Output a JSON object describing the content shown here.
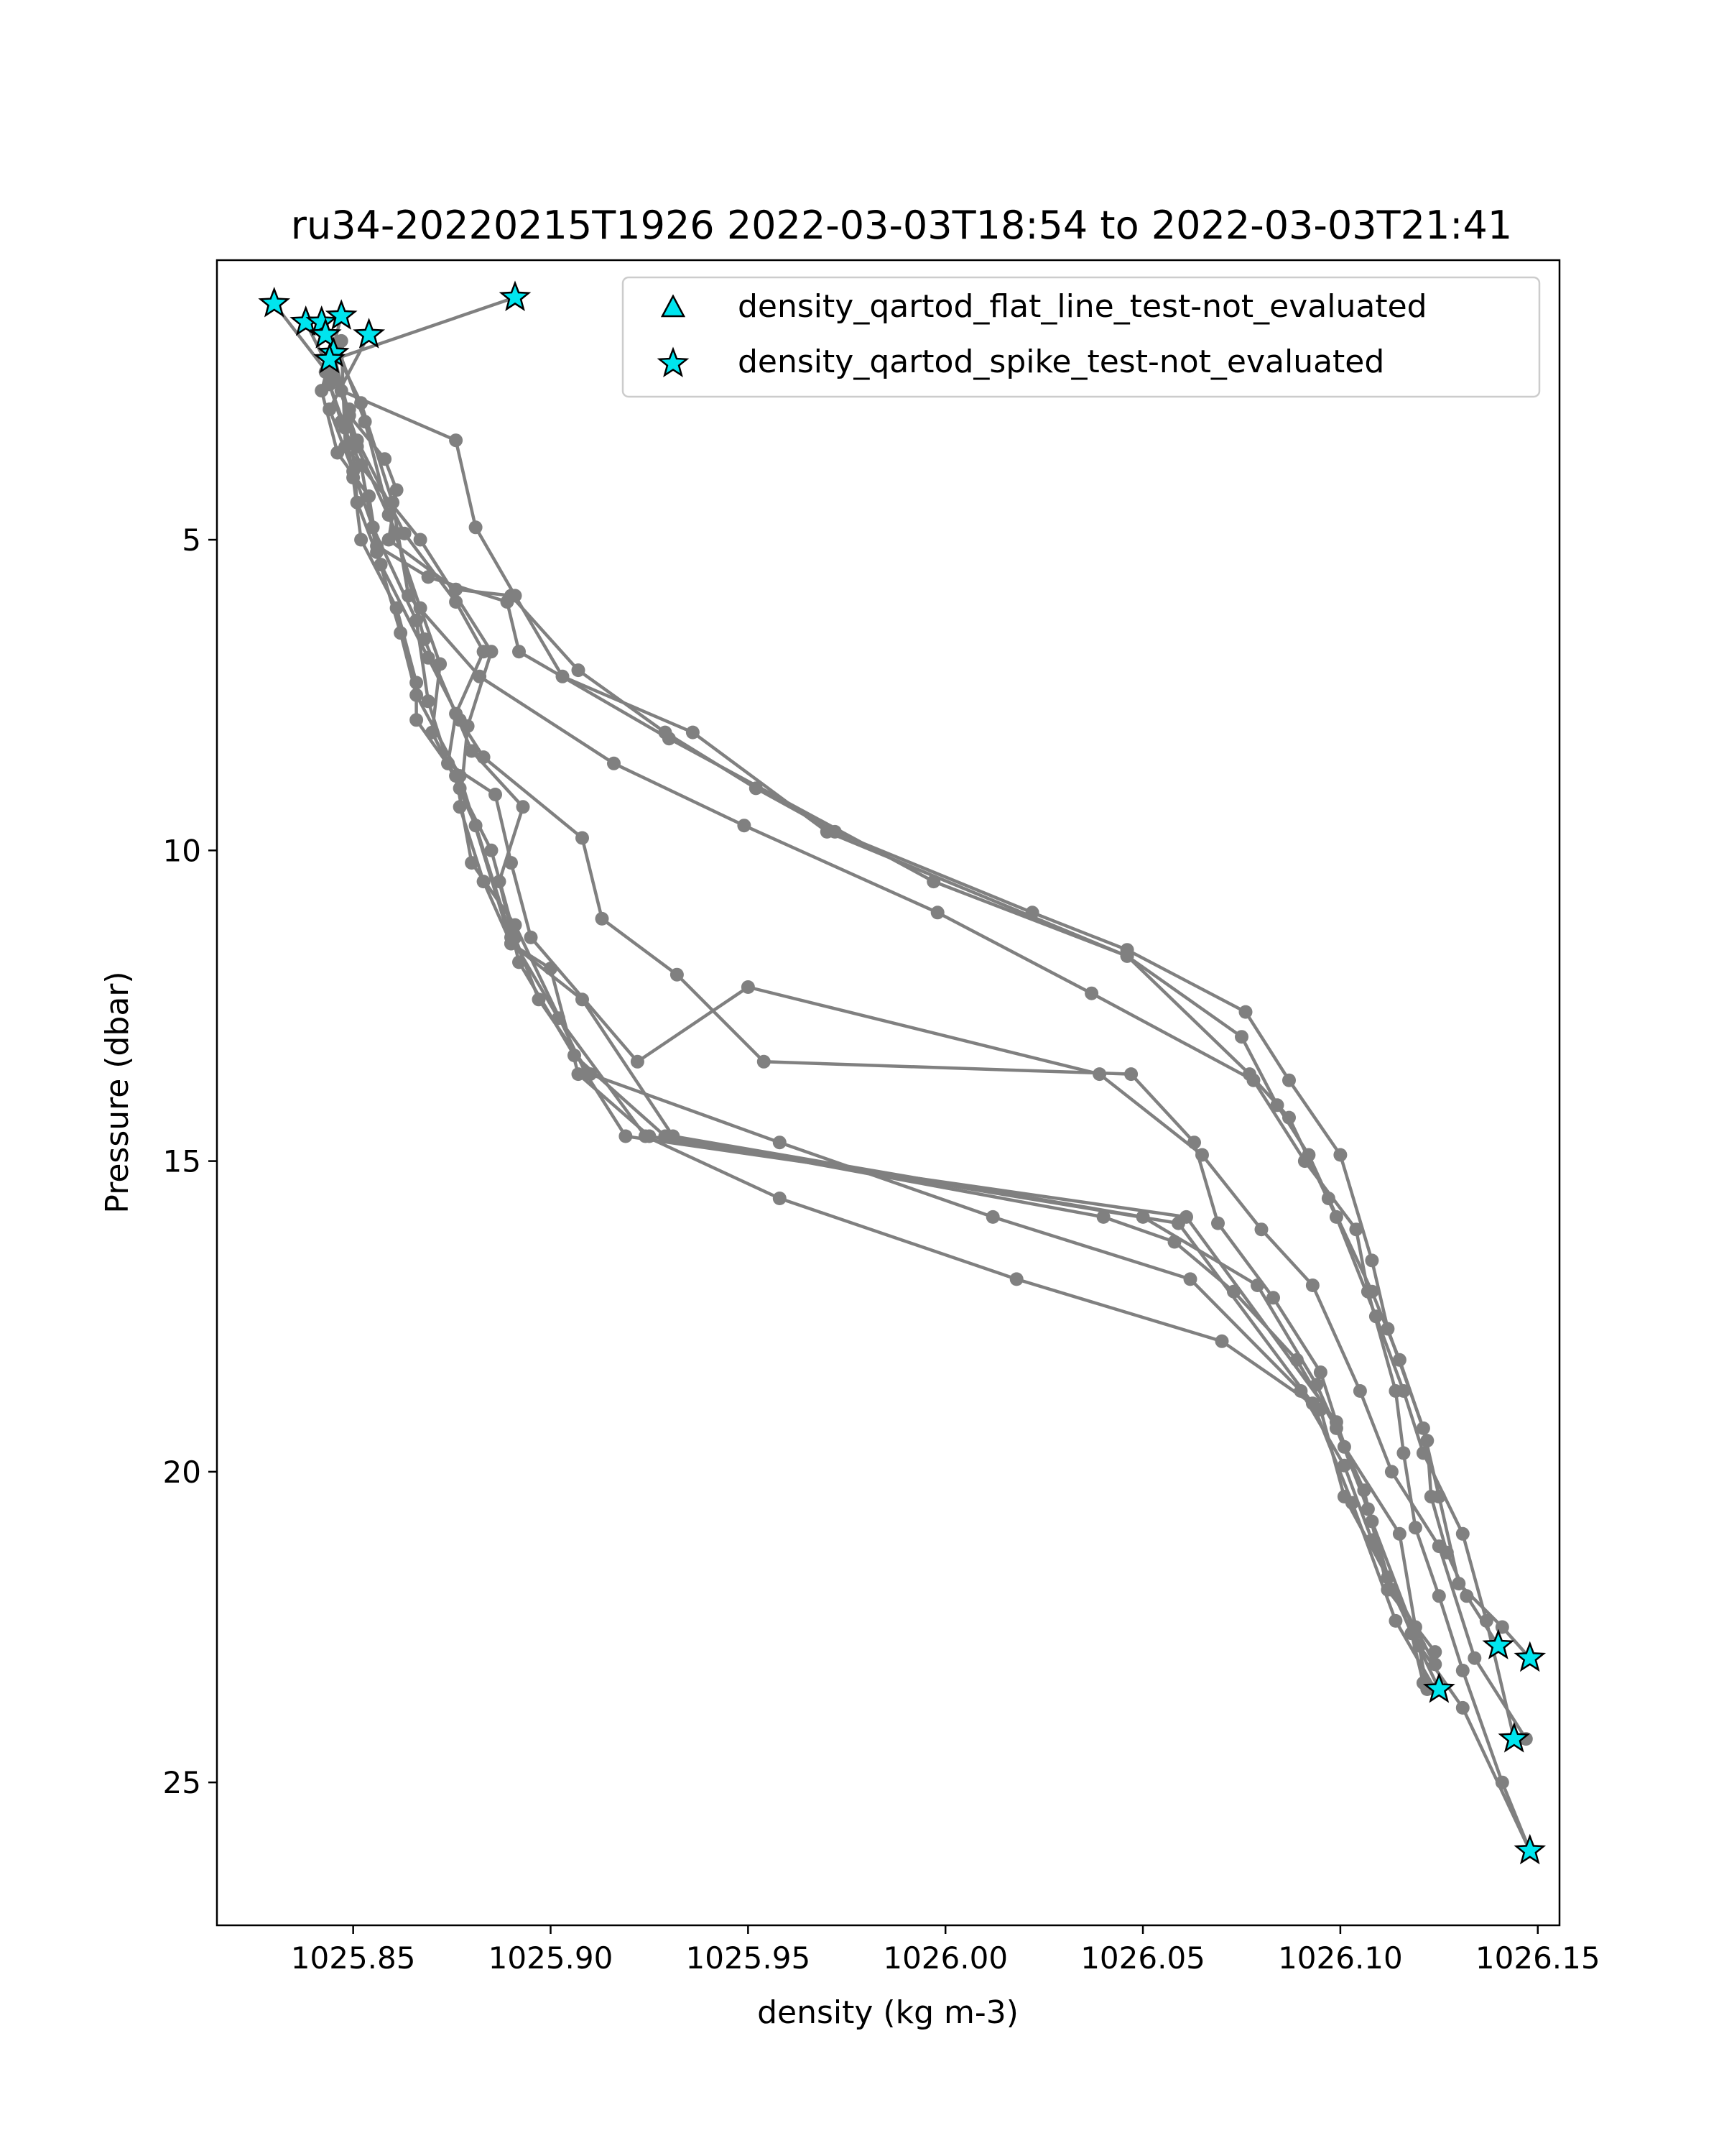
{
  "chart_data": {
    "type": "line",
    "title": "ru34-20220215T1926 2022-03-03T18:54 to 2022-03-03T21:41",
    "xlabel": "density (kg m-3)",
    "ylabel": "Pressure (dbar)",
    "xlim": [
      1025.8155,
      1026.1555
    ],
    "ylim": [
      27.3,
      0.5
    ],
    "y_inverted": true,
    "xticks": [
      1025.85,
      1025.9,
      1025.95,
      1026.0,
      1026.05,
      1026.1,
      1026.15
    ],
    "xtick_labels": [
      "1025.85",
      "1025.90",
      "1025.95",
      "1026.00",
      "1026.05",
      "1026.10",
      "1026.15"
    ],
    "yticks": [
      5,
      10,
      15,
      20,
      25
    ],
    "ytick_labels": [
      "5",
      "10",
      "15",
      "20",
      "25"
    ],
    "grid": false,
    "colors": {
      "profile": "#808080",
      "marker_fill": "#00e5ee",
      "marker_edge": "#000000"
    },
    "series": [
      {
        "points": [
          [
            1025.891,
            1.1
          ],
          [
            1025.845,
            2.1
          ],
          [
            1025.849,
            3.0
          ],
          [
            1025.858,
            3.7
          ],
          [
            1025.861,
            4.2
          ],
          [
            1025.859,
            5.0
          ],
          [
            1025.876,
            5.8
          ],
          [
            1025.89,
            5.9
          ],
          [
            1025.907,
            7.1
          ],
          [
            1025.929,
            8.1
          ],
          [
            1025.952,
            9.0
          ],
          [
            1025.972,
            9.7
          ],
          [
            1026.022,
            11.0
          ],
          [
            1026.046,
            11.6
          ],
          [
            1026.076,
            12.6
          ],
          [
            1026.087,
            13.7
          ],
          [
            1026.1,
            14.9
          ],
          [
            1026.108,
            16.6
          ],
          [
            1026.112,
            17.7
          ],
          [
            1026.121,
            19.3
          ],
          [
            1026.125,
            20.4
          ],
          [
            1026.13,
            21.8
          ],
          [
            1026.141,
            22.5
          ],
          [
            1026.148,
            23.0
          ]
        ]
      },
      {
        "points": [
          [
            1025.847,
            1.4
          ],
          [
            1025.842,
            2.6
          ],
          [
            1025.846,
            3.6
          ],
          [
            1025.854,
            4.3
          ],
          [
            1025.856,
            5.1
          ],
          [
            1025.869,
            5.6
          ],
          [
            1025.889,
            6.0
          ],
          [
            1025.892,
            6.8
          ],
          [
            1025.93,
            8.2
          ],
          [
            1025.997,
            10.5
          ],
          [
            1026.046,
            11.7
          ],
          [
            1026.075,
            13.0
          ],
          [
            1026.084,
            14.1
          ],
          [
            1026.092,
            14.9
          ],
          [
            1026.097,
            15.6
          ],
          [
            1026.108,
            17.1
          ],
          [
            1026.115,
            18.2
          ],
          [
            1026.122,
            19.5
          ],
          [
            1026.123,
            20.4
          ],
          [
            1026.127,
            21.3
          ],
          [
            1026.132,
            22.0
          ],
          [
            1026.14,
            22.8
          ]
        ]
      },
      {
        "points": [
          [
            1025.83,
            1.2
          ],
          [
            1025.847,
            2.6
          ],
          [
            1025.876,
            3.4
          ],
          [
            1025.881,
            4.8
          ],
          [
            1025.891,
            5.9
          ],
          [
            1025.903,
            7.2
          ],
          [
            1025.936,
            8.1
          ],
          [
            1025.97,
            9.7
          ],
          [
            1026.046,
            11.7
          ],
          [
            1026.077,
            13.6
          ],
          [
            1026.087,
            14.3
          ],
          [
            1026.099,
            15.9
          ],
          [
            1026.109,
            17.5
          ],
          [
            1026.116,
            18.7
          ],
          [
            1026.121,
            19.7
          ],
          [
            1026.131,
            21.0
          ],
          [
            1026.137,
            22.4
          ],
          [
            1026.144,
            24.3
          ]
        ]
      },
      {
        "points": [
          [
            1025.842,
            1.5
          ],
          [
            1025.852,
            2.8
          ],
          [
            1025.86,
            4.4
          ],
          [
            1025.864,
            5.9
          ],
          [
            1025.882,
            7.2
          ],
          [
            1025.916,
            8.6
          ],
          [
            1025.949,
            9.6
          ],
          [
            1025.998,
            11.0
          ],
          [
            1026.037,
            12.3
          ],
          [
            1026.078,
            13.7
          ],
          [
            1026.091,
            15.0
          ],
          [
            1026.104,
            16.1
          ],
          [
            1026.107,
            17.1
          ],
          [
            1026.114,
            18.7
          ],
          [
            1026.116,
            19.7
          ],
          [
            1026.119,
            20.9
          ],
          [
            1026.125,
            22.0
          ],
          [
            1026.131,
            23.2
          ],
          [
            1026.141,
            25.0
          ],
          [
            1026.148,
            26.1
          ]
        ]
      },
      {
        "points": [
          [
            1025.838,
            1.5
          ],
          [
            1025.849,
            2.9
          ],
          [
            1025.851,
            4.4
          ],
          [
            1025.857,
            5.4
          ],
          [
            1025.869,
            6.9
          ],
          [
            1025.877,
            7.9
          ],
          [
            1025.883,
            8.5
          ],
          [
            1025.908,
            9.8
          ],
          [
            1025.913,
            11.1
          ],
          [
            1025.932,
            12.0
          ],
          [
            1025.954,
            13.4
          ],
          [
            1026.047,
            13.6
          ],
          [
            1026.063,
            14.7
          ],
          [
            1026.069,
            16.0
          ],
          [
            1026.083,
            17.2
          ],
          [
            1026.095,
            18.4
          ],
          [
            1026.101,
            19.6
          ],
          [
            1026.115,
            21.0
          ],
          [
            1026.119,
            22.5
          ],
          [
            1026.122,
            23.5
          ]
        ]
      },
      {
        "points": [
          [
            1025.854,
            1.7
          ],
          [
            1025.844,
            2.9
          ],
          [
            1025.85,
            3.9
          ],
          [
            1025.855,
            4.8
          ],
          [
            1025.866,
            6.3
          ],
          [
            1025.869,
            7.6
          ],
          [
            1025.874,
            8.6
          ],
          [
            1025.886,
            9.1
          ],
          [
            1025.89,
            10.2
          ],
          [
            1025.895,
            11.4
          ],
          [
            1025.922,
            13.4
          ],
          [
            1025.95,
            12.2
          ],
          [
            1026.039,
            13.6
          ],
          [
            1026.065,
            14.9
          ],
          [
            1026.08,
            16.1
          ],
          [
            1026.093,
            17.0
          ],
          [
            1026.105,
            18.7
          ],
          [
            1026.113,
            20.0
          ],
          [
            1026.125,
            21.2
          ],
          [
            1026.134,
            23.0
          ],
          [
            1026.147,
            24.3
          ]
        ]
      },
      {
        "points": [
          [
            1025.845,
            2.0
          ],
          [
            1025.851,
            3.5
          ],
          [
            1025.861,
            4.9
          ],
          [
            1025.868,
            6.6
          ],
          [
            1025.88,
            8.4
          ],
          [
            1025.893,
            9.3
          ],
          [
            1025.887,
            10.5
          ],
          [
            1025.892,
            11.8
          ],
          [
            1025.906,
            13.3
          ],
          [
            1025.929,
            14.6
          ],
          [
            1026.04,
            15.9
          ],
          [
            1026.058,
            16.3
          ],
          [
            1026.073,
            17.1
          ],
          [
            1026.089,
            18.2
          ],
          [
            1026.099,
            19.3
          ],
          [
            1026.107,
            20.6
          ],
          [
            1026.113,
            21.9
          ],
          [
            1026.125,
            23.5
          ]
        ]
      },
      {
        "points": [
          [
            1025.847,
            1.8
          ],
          [
            1025.848,
            3.5
          ],
          [
            1025.867,
            5.0
          ],
          [
            1025.885,
            6.8
          ],
          [
            1025.879,
            8.0
          ],
          [
            1025.877,
            9.3
          ],
          [
            1025.883,
            10.5
          ],
          [
            1025.89,
            11.5
          ],
          [
            1025.908,
            12.4
          ],
          [
            1025.931,
            14.6
          ],
          [
            1026.05,
            15.9
          ],
          [
            1026.079,
            17.0
          ],
          [
            1026.094,
            18.6
          ],
          [
            1026.106,
            20.3
          ],
          [
            1026.112,
            21.9
          ],
          [
            1026.124,
            22.9
          ]
        ]
      },
      {
        "points": [
          [
            1025.846,
            1.9
          ],
          [
            1025.853,
            3.1
          ],
          [
            1025.859,
            4.6
          ],
          [
            1025.867,
            6.1
          ],
          [
            1025.872,
            7.0
          ],
          [
            1025.87,
            8.1
          ],
          [
            1025.877,
            9.0
          ],
          [
            1025.885,
            10.0
          ],
          [
            1025.891,
            11.4
          ],
          [
            1025.897,
            12.4
          ],
          [
            1025.91,
            13.6
          ],
          [
            1025.958,
            14.7
          ],
          [
            1026.012,
            15.9
          ],
          [
            1026.062,
            16.9
          ],
          [
            1026.09,
            18.7
          ],
          [
            1026.101,
            19.9
          ],
          [
            1026.108,
            21.1
          ],
          [
            1026.118,
            22.6
          ],
          [
            1026.121,
            23.4
          ]
        ]
      },
      {
        "points": [
          [
            1025.844,
            2.1
          ],
          [
            1025.851,
            3.4
          ],
          [
            1025.863,
            4.9
          ],
          [
            1025.876,
            6.0
          ],
          [
            1025.883,
            6.8
          ],
          [
            1025.876,
            7.8
          ],
          [
            1025.874,
            8.6
          ],
          [
            1025.881,
            9.6
          ],
          [
            1025.89,
            11.4
          ],
          [
            1025.902,
            12.7
          ],
          [
            1025.924,
            14.6
          ],
          [
            1025.958,
            15.6
          ],
          [
            1026.018,
            16.9
          ],
          [
            1026.07,
            17.9
          ],
          [
            1026.095,
            19.0
          ],
          [
            1026.101,
            20.4
          ],
          [
            1026.112,
            21.7
          ],
          [
            1026.124,
            23.1
          ]
        ]
      },
      {
        "points": [
          [
            1025.843,
            2.3
          ],
          [
            1025.847,
            3.1
          ],
          [
            1025.852,
            3.8
          ],
          [
            1025.856,
            5.2
          ],
          [
            1025.862,
            6.5
          ],
          [
            1025.866,
            7.5
          ],
          [
            1025.877,
            8.8
          ],
          [
            1025.89,
            11.5
          ],
          [
            1025.9,
            11.9
          ],
          [
            1025.907,
            13.6
          ],
          [
            1025.925,
            14.6
          ],
          [
            1026.059,
            16.0
          ],
          [
            1026.093,
            18.9
          ],
          [
            1026.103,
            20.5
          ],
          [
            1026.114,
            22.4
          ],
          [
            1026.124,
            23.5
          ]
        ]
      },
      {
        "points": [
          [
            1025.844,
            2.5
          ],
          [
            1025.848,
            3.2
          ],
          [
            1025.85,
            4.0
          ],
          [
            1025.852,
            5.0
          ],
          [
            1025.861,
            6.1
          ],
          [
            1025.866,
            7.3
          ],
          [
            1025.866,
            7.9
          ],
          [
            1025.876,
            8.8
          ],
          [
            1025.88,
            10.2
          ],
          [
            1025.891,
            11.2
          ],
          [
            1025.909,
            13.6
          ],
          [
            1025.919,
            14.6
          ],
          [
            1026.061,
            15.9
          ],
          [
            1026.099,
            19.2
          ],
          [
            1026.108,
            20.8
          ],
          [
            1026.12,
            22.8
          ],
          [
            1026.131,
            23.8
          ],
          [
            1026.148,
            26.1
          ]
        ]
      }
    ],
    "flat_line_markers": [],
    "spike_markers": [
      [
        1025.891,
        1.1
      ],
      [
        1025.83,
        1.2
      ],
      [
        1025.838,
        1.5
      ],
      [
        1025.842,
        1.5
      ],
      [
        1025.847,
        1.4
      ],
      [
        1025.854,
        1.7
      ],
      [
        1025.843,
        1.7
      ],
      [
        1025.845,
        2.0
      ],
      [
        1025.844,
        2.1
      ],
      [
        1026.14,
        22.8
      ],
      [
        1026.148,
        23.0
      ],
      [
        1026.125,
        23.5
      ],
      [
        1026.144,
        24.3
      ],
      [
        1026.148,
        26.1
      ]
    ],
    "legend": {
      "position": "top-right",
      "entries": [
        {
          "label": "density_qartod_flat_line_test-not_evaluated",
          "marker": "triangle"
        },
        {
          "label": "density_qartod_spike_test-not_evaluated",
          "marker": "star"
        }
      ]
    }
  }
}
